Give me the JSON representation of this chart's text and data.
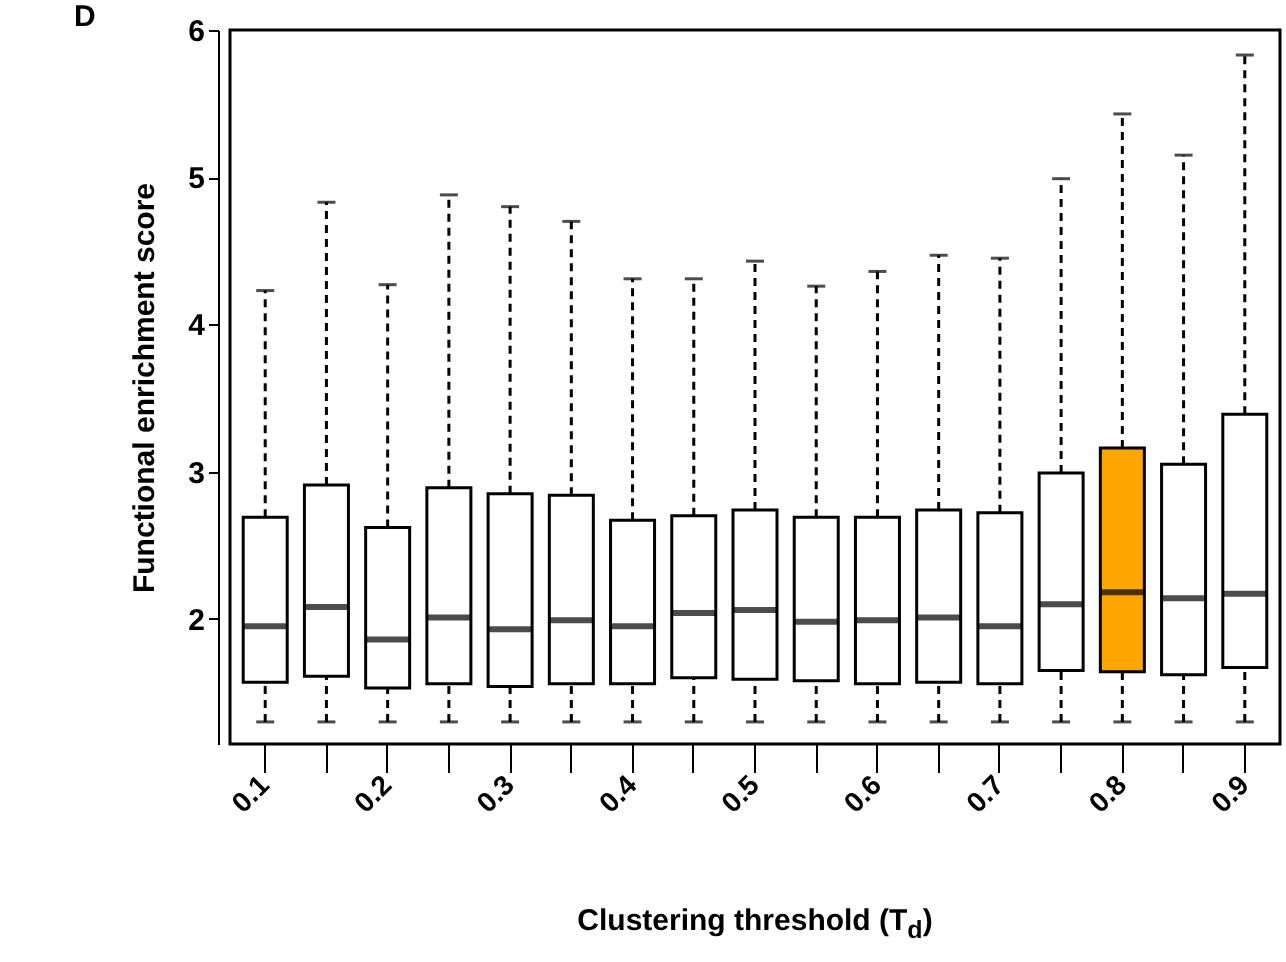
{
  "chart_data": {
    "type": "box",
    "title": "D",
    "xlabel": "Clustering threshold (T$_{d}$)",
    "ylabel": "Functional enrichment score",
    "categories": [
      "0.1",
      null,
      "0.2",
      null,
      "0.3",
      null,
      "0.4",
      null,
      "0.5",
      null,
      "0.6",
      null,
      "0.7",
      null,
      "0.8",
      null,
      "0.9"
    ],
    "boxes": [
      {
        "low": 1.3,
        "q1": 1.57,
        "median": 1.95,
        "q3": 2.69,
        "high": 4.23
      },
      {
        "low": 1.3,
        "q1": 1.61,
        "median": 2.08,
        "q3": 2.91,
        "high": 4.83
      },
      {
        "low": 1.3,
        "q1": 1.53,
        "median": 1.86,
        "q3": 2.62,
        "high": 4.27
      },
      {
        "low": 1.3,
        "q1": 1.56,
        "median": 2.01,
        "q3": 2.89,
        "high": 4.88
      },
      {
        "low": 1.3,
        "q1": 1.54,
        "median": 1.93,
        "q3": 2.85,
        "high": 4.8
      },
      {
        "low": 1.3,
        "q1": 1.56,
        "median": 1.99,
        "q3": 2.84,
        "high": 4.7
      },
      {
        "low": 1.3,
        "q1": 1.56,
        "median": 1.95,
        "q3": 2.67,
        "high": 4.31
      },
      {
        "low": 1.3,
        "q1": 1.6,
        "median": 2.04,
        "q3": 2.7,
        "high": 4.31
      },
      {
        "low": 1.3,
        "q1": 1.59,
        "median": 2.06,
        "q3": 2.74,
        "high": 4.43
      },
      {
        "low": 1.3,
        "q1": 1.58,
        "median": 1.98,
        "q3": 2.69,
        "high": 4.26
      },
      {
        "low": 1.3,
        "q1": 1.56,
        "median": 1.99,
        "q3": 2.69,
        "high": 4.36
      },
      {
        "low": 1.3,
        "q1": 1.57,
        "median": 2.01,
        "q3": 2.74,
        "high": 4.47
      },
      {
        "low": 1.3,
        "q1": 1.56,
        "median": 1.95,
        "q3": 2.72,
        "high": 4.45
      },
      {
        "low": 1.3,
        "q1": 1.65,
        "median": 2.1,
        "q3": 2.99,
        "high": 4.99
      },
      {
        "low": 1.3,
        "q1": 1.64,
        "median": 2.18,
        "q3": 3.16,
        "high": 5.43
      },
      {
        "low": 1.3,
        "q1": 1.62,
        "median": 2.14,
        "q3": 3.05,
        "high": 5.15
      },
      {
        "low": 1.3,
        "q1": 1.67,
        "median": 2.17,
        "q3": 3.39,
        "high": 5.83
      }
    ],
    "colors": [
      "#ffffff",
      "#ffffff",
      "#ffffff",
      "#ffffff",
      "#ffffff",
      "#ffffff",
      "#ffffff",
      "#ffffff",
      "#ffffff",
      "#ffffff",
      "#ffffff",
      "#ffffff",
      "#ffffff",
      "#ffffff",
      "#ffa500",
      "#ffffff",
      "#ffffff"
    ],
    "grid": false,
    "ylim": [
      1.15,
      6
    ],
    "yticks": [
      2,
      3,
      4,
      5,
      6
    ]
  }
}
